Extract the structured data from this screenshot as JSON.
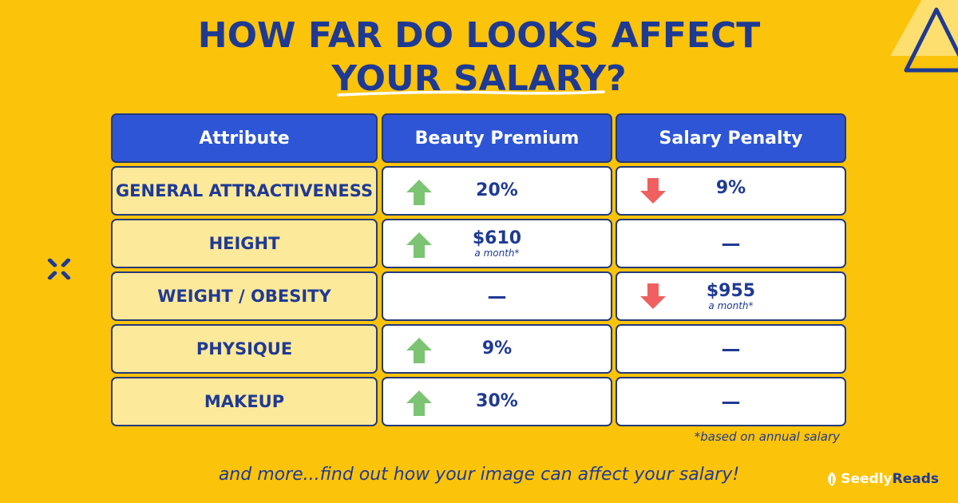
{
  "title": {
    "line1": "HOW FAR DO LOOKS AFFECT",
    "line2": "YOUR SALARY?"
  },
  "table": {
    "headers": [
      "Attribute",
      "Beauty Premium",
      "Salary Penalty"
    ],
    "rows": [
      {
        "attribute": "GENERAL ATTRACTIVENESS",
        "premium": "20%",
        "premium_note": "",
        "penalty": "9%",
        "penalty_note": ""
      },
      {
        "attribute": "HEIGHT",
        "premium": "$610",
        "premium_note": "a month*",
        "penalty": "—",
        "penalty_note": ""
      },
      {
        "attribute": "WEIGHT / OBESITY",
        "premium": "—",
        "premium_note": "",
        "penalty": "$955",
        "penalty_note": "a month*"
      },
      {
        "attribute": "PHYSIQUE",
        "premium": "9%",
        "premium_note": "",
        "penalty": "—",
        "penalty_note": ""
      },
      {
        "attribute": "MAKEUP",
        "premium": "30%",
        "premium_note": "",
        "penalty": "—",
        "penalty_note": ""
      }
    ]
  },
  "footnote": "*based on annual salary",
  "tagline": "and more...find out how your image can affect your salary!",
  "logo": {
    "brand": "Seedly",
    "suffix": "Reads"
  },
  "colors": {
    "background": "#fcc30b",
    "navy": "#1f3a93",
    "header_blue": "#2d55d5",
    "attr_fill": "#fde99a",
    "up_arrow": "#7cc474",
    "down_arrow": "#f06060"
  }
}
